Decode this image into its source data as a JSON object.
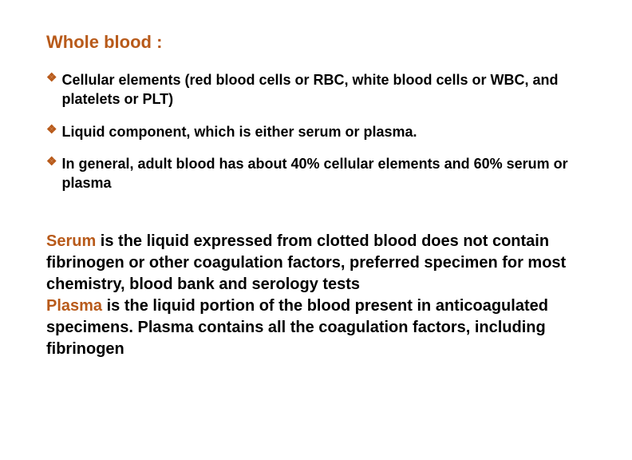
{
  "colors": {
    "title": "#b85a1a",
    "bullet_icon": "#b85a1a",
    "highlight": "#b85a1a",
    "body": "#000000",
    "background": "#ffffff"
  },
  "title": "Whole blood :",
  "bullets": [
    {
      "text": "Cellular elements (red blood cells or RBC, white blood cells or WBC, and  platelets or PLT)"
    },
    {
      "text": "Liquid component, which is either serum or plasma."
    },
    {
      "text": "In general, adult blood has about 40% cellular elements and 60% serum or plasma"
    }
  ],
  "paragraph": {
    "serum_label": "Serum",
    "serum_rest": " is the liquid expressed from clotted blood does not contain fibrinogen or other coagulation factors, preferred specimen for most chemistry, blood bank and serology tests",
    "plasma_label": "Plasma",
    "plasma_rest": " is the liquid portion of the blood present in anticoagulated specimens. Plasma contains all the coagulation factors, including fibrinogen"
  },
  "typography": {
    "title_fontsize": 22,
    "bullet_fontsize": 18,
    "para_fontsize": 20,
    "font_weight": "bold",
    "font_family": "Arial"
  }
}
